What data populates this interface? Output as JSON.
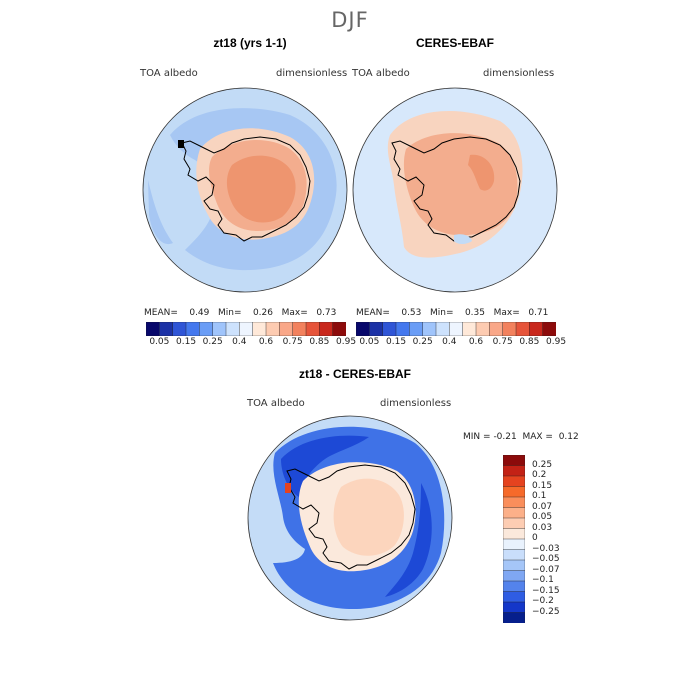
{
  "figure": {
    "season": "DJF",
    "colors": {
      "ocean_light": "#d7e8fb",
      "ocean_mid": "#c2dbf6",
      "ocean_blue": "#a7c7f3",
      "ice_peach": "#f8d4bf",
      "ice_salmon": "#f3ad8e",
      "ice_orange": "#ee956f",
      "diff_blue": "#3f72e7",
      "diff_dark": "#1d49d6",
      "diff_light": "#c4dcf7",
      "coast": "#000000"
    }
  },
  "chart_data": [
    {
      "type": "heatmap",
      "projection": "south-polar-stereographic",
      "title": "zt18 (yrs 1-1)",
      "left_label": "TOA albedo",
      "right_label": "dimensionless",
      "stats": {
        "mean_label": "MEAN=",
        "mean": "0.49",
        "min_label": "Min=",
        "min": "0.26",
        "max_label": "Max=",
        "max": "0.73"
      },
      "colorbar": {
        "ticks": [
          "0.05",
          "0.15",
          "0.25",
          "0.4",
          "0.6",
          "0.75",
          "0.85",
          "0.95"
        ],
        "colors": [
          "#08086b",
          "#1c32a6",
          "#2f55d6",
          "#4478ee",
          "#6a9df6",
          "#9fc4fb",
          "#cde2fd",
          "#eef5ff",
          "#ffe9d9",
          "#fdcbb1",
          "#f9a788",
          "#f2815d",
          "#e6543a",
          "#c9281d",
          "#8c0b0b"
        ]
      }
    },
    {
      "type": "heatmap",
      "projection": "south-polar-stereographic",
      "title": "CERES-EBAF",
      "left_label": "TOA albedo",
      "right_label": "dimensionless",
      "stats": {
        "mean_label": "MEAN=",
        "mean": "0.53",
        "min_label": "Min=",
        "min": "0.35",
        "max_label": "Max=",
        "max": "0.71"
      },
      "colorbar": {
        "ticks": [
          "0.05",
          "0.15",
          "0.25",
          "0.4",
          "0.6",
          "0.75",
          "0.85",
          "0.95"
        ],
        "colors": [
          "#08086b",
          "#1c32a6",
          "#2f55d6",
          "#4478ee",
          "#6a9df6",
          "#9fc4fb",
          "#cde2fd",
          "#eef5ff",
          "#ffe9d9",
          "#fdcbb1",
          "#f9a788",
          "#f2815d",
          "#e6543a",
          "#c9281d",
          "#8c0b0b"
        ]
      }
    },
    {
      "type": "heatmap",
      "projection": "south-polar-stereographic",
      "title": "zt18 - CERES-EBAF",
      "left_label": "TOA albedo",
      "right_label": "dimensionless",
      "stats": {
        "min_label": "MIN =",
        "min": "-0.21",
        "max_label": "MAX =",
        "max": "0.12"
      },
      "colorbar": {
        "orientation": "vertical",
        "ticks": [
          "0.25",
          "0.2",
          "0.15",
          "0.1",
          "0.07",
          "0.05",
          "0.03",
          "0",
          "−0.03",
          "−0.05",
          "−0.07",
          "−0.1",
          "−0.15",
          "−0.2",
          "−0.25"
        ],
        "colors": [
          "#8c0b0b",
          "#c32216",
          "#e5431f",
          "#f66a2a",
          "#fa8e5b",
          "#fcb089",
          "#fdcdb3",
          "#fbe9dc",
          "#e9f2fd",
          "#c9defb",
          "#a5c6f8",
          "#7fa7f3",
          "#5483ec",
          "#2f5de3",
          "#1437c9",
          "#061f8c"
        ]
      }
    }
  ]
}
